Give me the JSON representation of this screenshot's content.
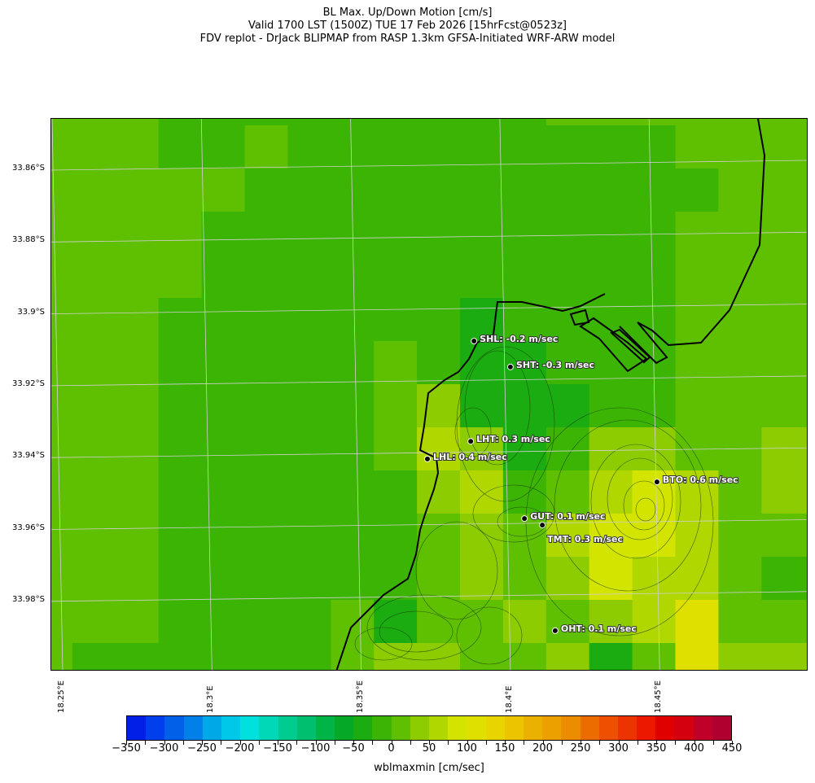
{
  "title": {
    "line1": "BL Max. Up/Down Motion [cm/s]",
    "line2": "Valid 1700 LST (1500Z) TUE 17 Feb 2026 [15hrFcst@0523z]",
    "line3": "FDV replot - DrJack BLIPMAP from RASP 1.3km GFSA-Initiated WRF-ARW model"
  },
  "axes": {
    "lat_labels": [
      "33.86°S",
      "33.88°S",
      "33.9°S",
      "33.92°S",
      "33.94°S",
      "33.96°S",
      "33.98°S"
    ],
    "lon_labels": [
      "18.25°E",
      "18.3°E",
      "18.35°E",
      "18.4°E",
      "18.45°E"
    ]
  },
  "field": {
    "units": "cm/s",
    "grid_values": [
      [
        10,
        10,
        10,
        -10,
        -10,
        -10,
        -10,
        -10,
        -10,
        -10,
        -10,
        -10,
        10,
        10,
        10,
        10,
        10,
        10
      ],
      [
        10,
        10,
        10,
        -10,
        -10,
        10,
        -10,
        -10,
        -10,
        -10,
        -10,
        -10,
        -10,
        -10,
        -10,
        10,
        10,
        10
      ],
      [
        10,
        10,
        10,
        10,
        10,
        -10,
        -10,
        -10,
        -10,
        -10,
        -10,
        -10,
        -10,
        -10,
        -10,
        -10,
        10,
        10
      ],
      [
        10,
        10,
        10,
        10,
        -10,
        -10,
        -10,
        -10,
        -10,
        -10,
        -10,
        -10,
        -10,
        -10,
        -10,
        10,
        10,
        10
      ],
      [
        10,
        10,
        10,
        10,
        -10,
        -10,
        -10,
        -10,
        -10,
        -10,
        -10,
        -10,
        -10,
        -10,
        -10,
        10,
        10,
        10
      ],
      [
        10,
        10,
        10,
        -10,
        -10,
        -10,
        -10,
        -10,
        -10,
        -10,
        -35,
        -10,
        -10,
        -10,
        -10,
        10,
        10,
        10
      ],
      [
        10,
        10,
        10,
        -10,
        -10,
        -10,
        -10,
        -10,
        10,
        -10,
        -35,
        -35,
        -10,
        -10,
        -10,
        10,
        10,
        10
      ],
      [
        10,
        10,
        10,
        -10,
        -10,
        -10,
        -10,
        -10,
        10,
        35,
        -35,
        -35,
        -35,
        -10,
        -10,
        10,
        10,
        10
      ],
      [
        10,
        10,
        10,
        -10,
        -10,
        -10,
        -10,
        -10,
        10,
        60,
        35,
        -35,
        -10,
        35,
        35,
        10,
        10,
        35
      ],
      [
        10,
        10,
        10,
        -10,
        -10,
        -10,
        -10,
        -10,
        -10,
        35,
        60,
        -10,
        10,
        60,
        85,
        60,
        10,
        35
      ],
      [
        10,
        10,
        10,
        -10,
        -10,
        -10,
        -10,
        -10,
        -10,
        10,
        35,
        10,
        60,
        85,
        85,
        60,
        10,
        10
      ],
      [
        10,
        10,
        10,
        -10,
        -10,
        -10,
        -10,
        -10,
        -10,
        10,
        35,
        10,
        35,
        85,
        60,
        60,
        10,
        -10
      ],
      [
        10,
        10,
        10,
        -10,
        -10,
        -10,
        -10,
        10,
        -35,
        10,
        10,
        35,
        10,
        35,
        60,
        110,
        10,
        10
      ],
      [
        10,
        -10,
        -10,
        -10,
        -10,
        -10,
        -10,
        10,
        35,
        35,
        10,
        10,
        35,
        -35,
        10,
        110,
        35,
        35
      ]
    ]
  },
  "stations": [
    {
      "label": "SHL: -0.2 m/sec",
      "lon": 18.3878,
      "lat": 33.9078
    },
    {
      "label": "SHT: -0.3 m/sec",
      "lon": 18.4,
      "lat": 33.915
    },
    {
      "label": "LHT: 0.3 m/sec",
      "lon": 18.3867,
      "lat": 33.9357
    },
    {
      "label": "LHL: 0.4 m/sec",
      "lon": 18.3722,
      "lat": 33.9406
    },
    {
      "label": "BTO: 0.6 m/sec",
      "lon": 18.4491,
      "lat": 33.947
    },
    {
      "label": "GUT: 0.1 m/sec",
      "lon": 18.4047,
      "lat": 33.9572
    },
    {
      "label": "TMT: 0.3 m/sec",
      "lon": 18.4107,
      "lat": 33.959
    },
    {
      "label": "OHT: 0.1 m/sec",
      "lon": 18.415,
      "lat": 33.9884
    }
  ],
  "colorbar": {
    "label": "wblmaxmin [cm/sec]",
    "min": -350,
    "max": 450,
    "step": 25,
    "tick_labels": [
      "−350",
      "−300",
      "−250",
      "−200",
      "−150",
      "−100",
      "−50",
      "0",
      "50",
      "100",
      "150",
      "200",
      "250",
      "300",
      "350",
      "400",
      "450"
    ],
    "colors": [
      "#0020e8",
      "#0040ec",
      "#0060e8",
      "#0080e8",
      "#00a8e8",
      "#00c8e8",
      "#00e0dc",
      "#00d8b8",
      "#00cc90",
      "#00c070",
      "#00b448",
      "#06a828",
      "#1aac10",
      "#3cb404",
      "#5ec000",
      "#8ccc00",
      "#b0d800",
      "#d2e400",
      "#e0e000",
      "#e8d400",
      "#ecc400",
      "#ecb000",
      "#eca000",
      "#ec8c00",
      "#ec6c00",
      "#ec5000",
      "#ec3400",
      "#ec1800",
      "#e00000",
      "#d40010",
      "#c00028",
      "#b00030"
    ]
  }
}
